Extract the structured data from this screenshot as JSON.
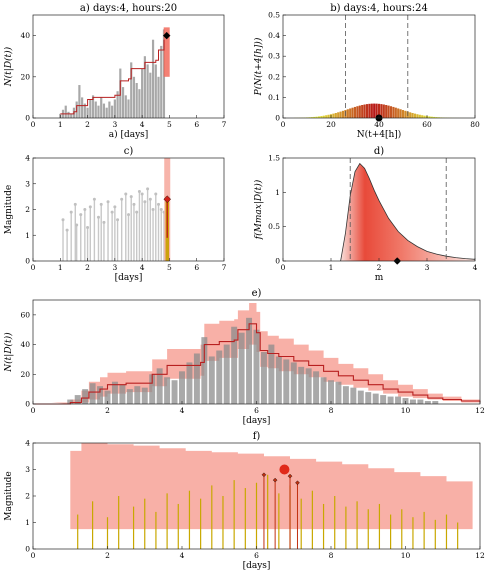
{
  "chart_data": [
    {
      "id": "a",
      "type": "bar",
      "title": "a) days:4, hours:20",
      "xlabel": "a) [days]",
      "ylabel": "N(t|D(t))",
      "xlim": [
        0,
        7
      ],
      "ylim": [
        0,
        50
      ],
      "xticks": [
        0,
        1,
        2,
        3,
        4,
        5,
        6,
        7
      ],
      "yticks": [
        0,
        20,
        40
      ],
      "bar_width": 0.08,
      "bars": {
        "x": [
          1.0,
          1.1,
          1.2,
          1.3,
          1.4,
          1.5,
          1.6,
          1.7,
          1.8,
          1.9,
          2.0,
          2.1,
          2.2,
          2.3,
          2.4,
          2.5,
          2.6,
          2.7,
          2.8,
          2.9,
          3.0,
          3.1,
          3.2,
          3.3,
          3.4,
          3.5,
          3.6,
          3.7,
          3.8,
          3.9,
          4.0,
          4.1,
          4.2,
          4.3,
          4.4,
          4.5,
          4.6,
          4.7,
          4.8
        ],
        "values": [
          2,
          4,
          6,
          3,
          2,
          5,
          8,
          16,
          10,
          7,
          5,
          9,
          11,
          8,
          6,
          10,
          7,
          5,
          8,
          6,
          9,
          13,
          24,
          15,
          11,
          9,
          27,
          20,
          17,
          14,
          24,
          30,
          26,
          22,
          38,
          26,
          20,
          35,
          43
        ]
      },
      "model_line": {
        "x": [
          1.0,
          1.5,
          1.6,
          2.0,
          2.2,
          3.0,
          3.2,
          3.5,
          3.6,
          4.0,
          4.1,
          4.5,
          4.6,
          4.8
        ],
        "values": [
          2,
          3,
          6,
          9,
          10,
          11,
          18,
          19,
          24,
          24,
          27,
          28,
          33,
          38
        ]
      },
      "forecast_band": {
        "x": 4.9,
        "low": 20,
        "high": 44
      },
      "observed_point": {
        "x": 4.9,
        "y": 40
      }
    },
    {
      "id": "b",
      "type": "bar",
      "title": "b) days:4, hours:24",
      "xlabel": "N(t+4[h])",
      "ylabel": "P(N(t+4[h]))",
      "xlim": [
        0,
        80
      ],
      "ylim": [
        0,
        0.5
      ],
      "xticks": [
        0,
        20,
        40,
        60,
        80
      ],
      "yticks": [
        0,
        0.1,
        0.2,
        0.3,
        0.4,
        0.5
      ],
      "ytick_labels": [
        "0",
        "0.1",
        "0.2",
        "0.3",
        "0.4",
        "0.5"
      ],
      "distribution": {
        "start": 5,
        "end": 78,
        "mean": 38,
        "sd": 11,
        "peak": 0.07
      },
      "interval": [
        26,
        52
      ],
      "observed_point": {
        "x": 40,
        "y": 0
      }
    },
    {
      "id": "c",
      "type": "scatter",
      "title": "c)",
      "xlabel": "[days]",
      "ylabel": "Magnitude",
      "xlim": [
        0,
        7
      ],
      "ylim": [
        0,
        4
      ],
      "xticks": [
        0,
        1,
        2,
        3,
        4,
        5,
        6,
        7
      ],
      "yticks": [
        0,
        1,
        2,
        3,
        4
      ],
      "bar_low": 0.8,
      "events": {
        "x": [
          1.1,
          1.25,
          1.4,
          1.55,
          1.6,
          1.75,
          1.9,
          2.0,
          2.1,
          2.25,
          2.4,
          2.5,
          2.6,
          2.75,
          2.9,
          3.0,
          3.1,
          3.25,
          3.4,
          3.5,
          3.6,
          3.7,
          3.8,
          3.9,
          4.0,
          4.1,
          4.2,
          4.3,
          4.4,
          4.5,
          4.6,
          4.7,
          4.8
        ],
        "values": [
          1.6,
          1.2,
          1.9,
          2.2,
          1.4,
          1.8,
          2.0,
          1.3,
          2.1,
          2.4,
          1.7,
          2.2,
          1.5,
          2.3,
          1.9,
          2.1,
          1.6,
          2.4,
          2.6,
          1.8,
          2.5,
          2.2,
          1.9,
          2.7,
          2.6,
          2.3,
          2.8,
          2.4,
          2.0,
          2.6,
          2.2,
          2.0,
          1.9
        ]
      },
      "recent_events": {
        "x": [
          4.88,
          4.92,
          4.96
        ],
        "values": [
          2.5,
          1.9,
          2.4
        ]
      },
      "forecast_band": {
        "x": 4.92,
        "low": 0,
        "high": 4
      },
      "max_point": {
        "x": 4.92,
        "y": 2.4
      }
    },
    {
      "id": "d",
      "type": "area",
      "title": "d)",
      "xlabel": "m",
      "ylabel": "f(Mmax|D(t))",
      "xlim": [
        0,
        4
      ],
      "ylim": [
        0,
        1.5
      ],
      "xticks": [
        0,
        1,
        2,
        3,
        4
      ],
      "yticks": [
        0,
        0.5,
        1,
        1.5
      ],
      "ytick_labels": [
        "0",
        "0.5",
        "1",
        "1.5"
      ],
      "density": {
        "x": [
          1.2,
          1.3,
          1.4,
          1.5,
          1.6,
          1.7,
          1.8,
          1.9,
          2.0,
          2.2,
          2.4,
          2.6,
          2.8,
          3.0,
          3.2,
          3.4,
          3.6,
          3.8,
          4.0
        ],
        "values": [
          0.0,
          0.4,
          0.95,
          1.3,
          1.42,
          1.35,
          1.2,
          1.03,
          0.88,
          0.62,
          0.43,
          0.3,
          0.21,
          0.14,
          0.1,
          0.07,
          0.05,
          0.035,
          0.025
        ]
      },
      "interval": [
        1.4,
        3.4
      ],
      "observed_point": {
        "x": 2.38,
        "y": 0
      }
    },
    {
      "id": "e",
      "type": "bar",
      "title": "e)",
      "xlabel": "[days]",
      "ylabel": "N(t|D(t))",
      "xlim": [
        0,
        12
      ],
      "ylim": [
        0,
        70
      ],
      "xticks": [
        0,
        2,
        4,
        6,
        8,
        10,
        12
      ],
      "yticks": [
        0,
        20,
        40,
        60
      ],
      "bar_width": 0.16,
      "bars": {
        "x": [
          1.0,
          1.2,
          1.4,
          1.6,
          1.8,
          2.0,
          2.2,
          2.4,
          2.6,
          2.8,
          3.0,
          3.2,
          3.4,
          3.6,
          3.8,
          4.0,
          4.2,
          4.4,
          4.6,
          4.8,
          5.0,
          5.2,
          5.4,
          5.6,
          5.8,
          6.0,
          6.2,
          6.4,
          6.6,
          6.8,
          7.0,
          7.2,
          7.4,
          7.6,
          7.8,
          8.0,
          8.2,
          8.4,
          8.6,
          8.8,
          9.0,
          9.2,
          9.4,
          9.6,
          9.8,
          10.0,
          10.2,
          10.4,
          10.6,
          10.8
        ],
        "values": [
          3,
          6,
          10,
          14,
          12,
          9,
          15,
          13,
          10,
          12,
          11,
          20,
          24,
          18,
          16,
          22,
          28,
          34,
          45,
          32,
          36,
          40,
          52,
          48,
          58,
          50,
          35,
          40,
          32,
          30,
          28,
          25,
          24,
          22,
          18,
          16,
          15,
          12,
          11,
          9,
          8,
          7,
          6,
          5,
          5,
          4,
          3,
          3,
          2,
          2
        ]
      },
      "model_line": {
        "x": [
          0,
          0.5,
          1.0,
          1.3,
          1.5,
          1.8,
          2.0,
          2.5,
          3.0,
          3.2,
          3.4,
          3.6,
          4.0,
          4.5,
          4.6,
          4.8,
          5.0,
          5.4,
          5.5,
          5.8,
          6.0,
          6.1,
          6.3,
          6.6,
          7.0,
          7.4,
          7.8,
          8.2,
          8.6,
          9.0,
          9.4,
          9.8,
          10.2,
          10.6,
          11.0,
          11.5,
          12.0
        ],
        "values": [
          0,
          0,
          1,
          4,
          8,
          10,
          13,
          14,
          14,
          20,
          20,
          26,
          26,
          28,
          40,
          40,
          42,
          43,
          50,
          54,
          48,
          36,
          34,
          32,
          29,
          26,
          22,
          19,
          16,
          13,
          10,
          8,
          6,
          4,
          3,
          2,
          1
        ]
      },
      "band": {
        "x": [
          0.5,
          1.0,
          1.3,
          1.5,
          1.8,
          2.0,
          2.5,
          3.0,
          3.2,
          3.4,
          3.6,
          4.0,
          4.5,
          4.6,
          4.8,
          5.0,
          5.4,
          5.5,
          5.8,
          6.0,
          6.1,
          6.3,
          6.6,
          7.0,
          7.4,
          7.8,
          8.2,
          8.6,
          9.0,
          9.4,
          9.8,
          10.2,
          10.6,
          11.0,
          11.5,
          12.0
        ],
        "low": [
          0,
          0,
          1,
          3,
          5,
          7,
          8,
          8,
          12,
          12,
          17,
          17,
          19,
          29,
          29,
          31,
          31,
          37,
          40,
          35,
          25,
          24,
          22,
          20,
          18,
          15,
          13,
          11,
          9,
          7,
          5,
          4,
          3,
          2,
          1,
          0
        ],
        "high": [
          1,
          3,
          9,
          15,
          18,
          21,
          22,
          22,
          30,
          30,
          37,
          37,
          40,
          54,
          54,
          56,
          57,
          63,
          68,
          62,
          49,
          46,
          44,
          40,
          36,
          31,
          27,
          24,
          20,
          16,
          13,
          10,
          7,
          5,
          3,
          2
        ]
      }
    },
    {
      "id": "f",
      "type": "scatter",
      "title": "f)",
      "xlabel": "[days]",
      "ylabel": "Magnitude",
      "xlim": [
        0,
        12
      ],
      "ylim": [
        0,
        4
      ],
      "xticks": [
        0,
        2,
        4,
        6,
        8,
        10,
        12
      ],
      "yticks": [
        0,
        1,
        2,
        3,
        4
      ],
      "bar_low": 0.0,
      "band_low": 0.75,
      "band_top": {
        "x": [
          1.0,
          1.3,
          2.0,
          2.7,
          3.4,
          4.1,
          4.8,
          5.5,
          6.2,
          6.9,
          7.6,
          8.3,
          9.0,
          9.7,
          10.4,
          11.1,
          11.8
        ],
        "values": [
          3.7,
          4.0,
          3.95,
          3.9,
          3.8,
          3.7,
          3.65,
          3.6,
          3.5,
          3.4,
          3.3,
          3.2,
          3.05,
          2.9,
          2.75,
          2.55,
          2.3
        ]
      },
      "events": {
        "x": [
          1.2,
          1.6,
          2.0,
          2.3,
          2.7,
          3.0,
          3.3,
          3.6,
          3.9,
          4.2,
          4.5,
          4.8,
          5.1,
          5.4,
          5.7,
          6.0,
          6.3,
          6.6,
          6.9,
          7.2,
          7.5,
          7.8,
          8.1,
          8.4,
          8.7,
          9.0,
          9.3,
          9.6,
          9.9,
          10.2,
          10.5,
          10.8,
          11.1,
          11.4
        ],
        "values": [
          1.3,
          1.8,
          1.2,
          2.0,
          1.6,
          1.9,
          1.4,
          2.1,
          1.7,
          2.2,
          1.9,
          2.4,
          2.0,
          2.6,
          2.3,
          2.5,
          2.8,
          2.1,
          2.4,
          1.9,
          2.2,
          1.7,
          2.0,
          1.6,
          1.8,
          1.5,
          1.7,
          1.3,
          1.5,
          1.2,
          1.4,
          1.1,
          1.3,
          1.0
        ]
      },
      "recent_events": {
        "x": [
          6.2,
          6.5,
          6.9,
          7.1
        ],
        "values": [
          2.8,
          2.6,
          2.75,
          2.5
        ]
      },
      "max_point": {
        "x": 6.75,
        "y": 3.0
      }
    }
  ]
}
